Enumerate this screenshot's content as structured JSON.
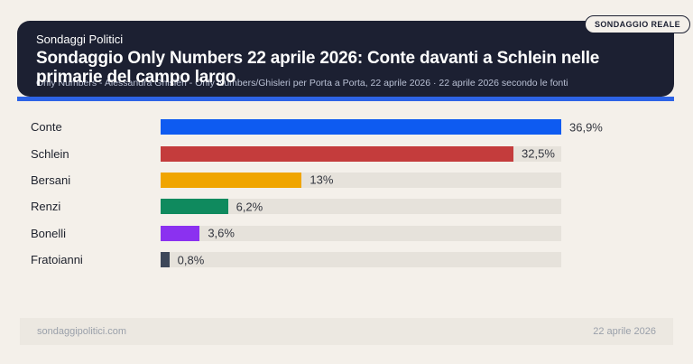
{
  "badge": {
    "label": "SONDAGGIO REALE"
  },
  "header": {
    "kicker": "Sondaggi Politici",
    "title": "Sondaggio Only Numbers 22 aprile 2026: Conte davanti a Schlein nelle primarie del campo largo",
    "subtitle": "Only Numbers - Alessandra Ghisleri - Only Numbers/Ghisleri per Porta a Porta, 22 aprile 2026 · 22 aprile 2026 secondo le fonti"
  },
  "chart_data": {
    "type": "bar",
    "orientation": "horizontal",
    "title": "Sondaggio Only Numbers 22 aprile 2026: Conte davanti a Schlein nelle primarie del campo largo",
    "categories": [
      "Conte",
      "Schlein",
      "Bersani",
      "Renzi",
      "Bonelli",
      "Fratoianni"
    ],
    "values": [
      36.9,
      32.5,
      13,
      6.2,
      3.6,
      0.8
    ],
    "value_labels": [
      "36,9%",
      "32,5%",
      "13%",
      "6,2%",
      "3,6%",
      "0,8%"
    ],
    "bar_colors": [
      "#0e5bf1",
      "#c43c3c",
      "#f0a500",
      "#0f8a5e",
      "#8b31f0",
      "#3d4759"
    ],
    "unit": "%",
    "xlim": [
      0,
      36.9
    ],
    "grid": false,
    "legend": false,
    "track_color": "#e6e2db"
  },
  "footer": {
    "site": "sondaggipolitici.com",
    "date": "22 aprile 2026"
  },
  "colors": {
    "page_bg": "#f4f0ea",
    "card_bg": "#1c2032",
    "accent_blue": "#2d63e6",
    "footer_bg": "#ece8e1"
  }
}
